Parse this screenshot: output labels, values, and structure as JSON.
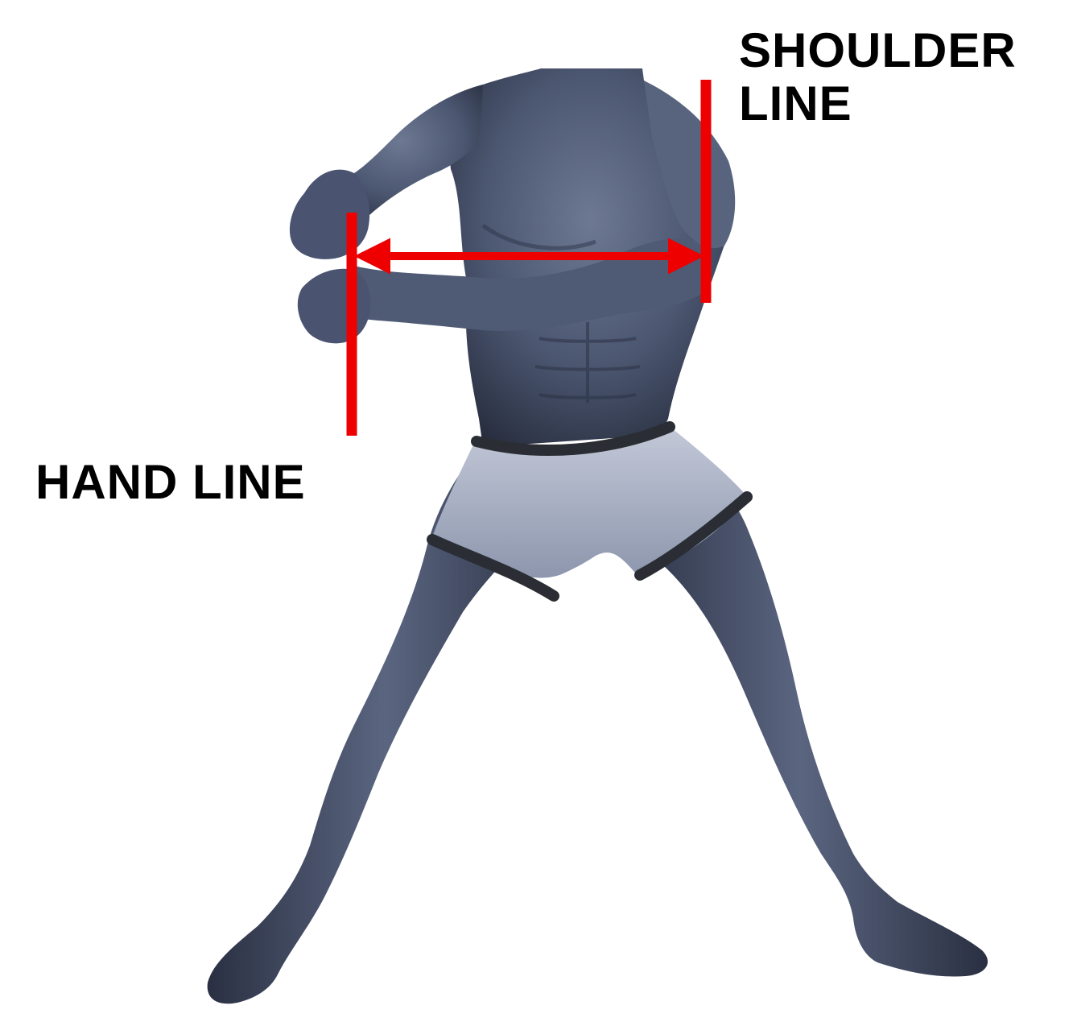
{
  "labels": {
    "shoulder_line_1": "SHOULDER",
    "shoulder_line_2": "LINE",
    "hand_line": "HAND LINE"
  },
  "colors": {
    "annotation": "#ee0000",
    "skin_dark": "#2c3346",
    "skin_mid": "#4b5670",
    "skin_light": "#8a93ab",
    "shorts": "#aab2c6",
    "band": "#2a2d33",
    "text": "#000000"
  },
  "figure": {
    "icon": "muscular-male-figure"
  }
}
